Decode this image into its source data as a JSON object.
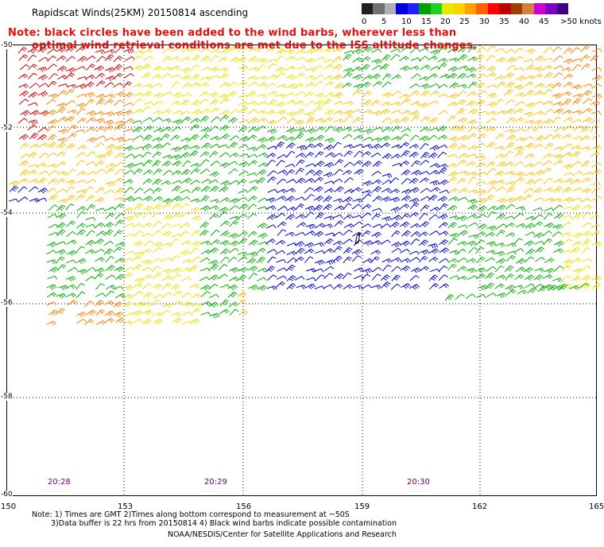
{
  "header": {
    "title": "Rapidscat Winds(25KM) 20150814 ascending",
    "note_line1": "Note: black circles have been added to the wind barbs, wherever less than",
    "note_line2": "optimal wind retrieval conditions are met due to the ISS altitude changes."
  },
  "legend": {
    "colors": [
      "#202020",
      "#707070",
      "#b0b0b0",
      "#0000e0",
      "#2020ff",
      "#00a000",
      "#20d020",
      "#e8e800",
      "#ffd000",
      "#ffa000",
      "#ff6000",
      "#ff0000",
      "#c00000",
      "#a04000",
      "#d08040",
      "#d000d0",
      "#8000c0",
      "#400080"
    ],
    "labels": [
      "0",
      "5",
      "10",
      "15",
      "20",
      "25",
      "30",
      "35",
      "40",
      "45",
      ">50 knots"
    ]
  },
  "map": {
    "lon_labels": [
      "150",
      "153",
      "156",
      "159",
      "162",
      "165"
    ],
    "lat_labels": [
      "-50",
      "-52",
      "-54",
      "-56",
      "-58",
      "-60"
    ],
    "time_labels": [
      "20:28",
      "20:29",
      "20:30"
    ],
    "barb_colors": {
      "blue": "#0000d0",
      "green": "#00b000",
      "yellow": "#f0e000",
      "gold": "#ffc000",
      "orange": "#ff8000",
      "red": "#d00000"
    }
  },
  "footer": {
    "line1": "Note: 1) Times are GMT 2)Times along bottom correspond to measurement at ~50S",
    "line2": "3)Data buffer is 22 hrs from 20150814 4) Black wind barbs indicate possible contamination",
    "line3": "NOAA/NESDIS/Center for Satellite Applications and Research"
  }
}
